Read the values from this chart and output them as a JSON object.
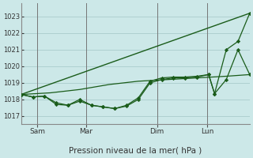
{
  "background_color": "#cce8e8",
  "grid_color": "#aacccc",
  "line_color": "#1a5c1a",
  "title": "Pression niveau de la mer( hPa )",
  "ylim": [
    1016.5,
    1023.8
  ],
  "yticks": [
    1017,
    1018,
    1019,
    1020,
    1021,
    1022,
    1023
  ],
  "day_labels": [
    "Sam",
    "Mar",
    "Dim",
    "Lun"
  ],
  "vline_x": [
    0.07,
    0.285,
    0.595,
    0.815
  ],
  "n_steps": 40,
  "straight_line": {
    "x": [
      0,
      39
    ],
    "y": [
      1018.3,
      1023.2
    ]
  },
  "flat_line": {
    "x": [
      0,
      5,
      10,
      15,
      20,
      25,
      30,
      35,
      39
    ],
    "y": [
      1018.3,
      1018.4,
      1018.6,
      1018.9,
      1019.1,
      1019.2,
      1019.3,
      1019.4,
      1019.5
    ]
  },
  "series_a_x": [
    0,
    2,
    4,
    6,
    8,
    10,
    12,
    14,
    16,
    18,
    20,
    22,
    24,
    26,
    28,
    30,
    32,
    33,
    35,
    37,
    39
  ],
  "series_a_y": [
    1018.3,
    1018.15,
    1018.2,
    1017.7,
    1017.65,
    1017.9,
    1017.65,
    1017.55,
    1017.45,
    1017.6,
    1018.0,
    1019.0,
    1019.2,
    1019.3,
    1019.3,
    1019.35,
    1019.5,
    1018.35,
    1019.2,
    1021.0,
    1019.5
  ],
  "series_b_x": [
    0,
    2,
    4,
    6,
    8,
    10,
    12,
    14,
    16,
    18,
    20,
    22,
    24,
    26,
    28,
    30,
    32,
    33,
    35,
    37,
    39
  ],
  "series_b_y": [
    1018.3,
    1018.15,
    1018.2,
    1017.8,
    1017.65,
    1018.0,
    1017.65,
    1017.55,
    1017.45,
    1017.65,
    1018.1,
    1019.1,
    1019.3,
    1019.35,
    1019.35,
    1019.4,
    1019.5,
    1018.35,
    1021.0,
    1021.5,
    1023.2
  ]
}
